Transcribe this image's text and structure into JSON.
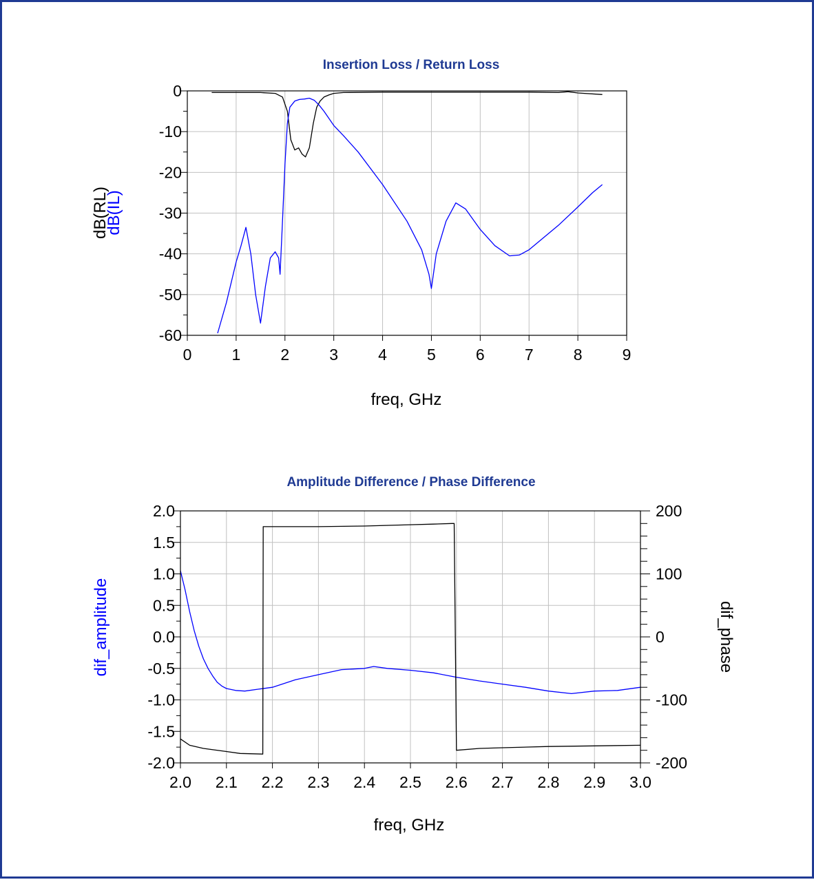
{
  "chart_data": [
    {
      "type": "line",
      "title": "Insertion Loss / Return Loss",
      "xlabel": "freq, GHz",
      "ylabels": [
        "dB(RL)",
        "dB(IL)"
      ],
      "xlim": [
        0,
        9
      ],
      "ylim": [
        -60,
        0
      ],
      "xticks": [
        "0",
        "1",
        "2",
        "3",
        "4",
        "5",
        "6",
        "7",
        "8",
        "9"
      ],
      "yticks": [
        "0",
        "-10",
        "-20",
        "-30",
        "-40",
        "-50",
        "-60"
      ],
      "grid": true,
      "series": [
        {
          "name": "dB(RL)",
          "color": "#000000",
          "x": [
            0.5,
            1.0,
            1.5,
            1.8,
            1.95,
            2.05,
            2.12,
            2.2,
            2.28,
            2.35,
            2.42,
            2.5,
            2.58,
            2.65,
            2.72,
            2.8,
            2.9,
            3.0,
            3.2,
            4.0,
            5.0,
            6.0,
            7.0,
            7.6,
            7.8,
            8.0,
            8.5
          ],
          "y": [
            -0.4,
            -0.4,
            -0.4,
            -0.6,
            -1.5,
            -5,
            -12,
            -14.5,
            -14,
            -15.5,
            -16.2,
            -14,
            -8,
            -4,
            -2.5,
            -1.5,
            -1.0,
            -0.6,
            -0.4,
            -0.3,
            -0.3,
            -0.3,
            -0.3,
            -0.4,
            -0.2,
            -0.5,
            -0.9
          ]
        },
        {
          "name": "dB(IL)",
          "color": "#0000ff",
          "x": [
            0.62,
            0.8,
            1.0,
            1.1,
            1.2,
            1.3,
            1.4,
            1.5,
            1.6,
            1.7,
            1.8,
            1.87,
            1.9,
            1.95,
            2.0,
            2.05,
            2.1,
            2.2,
            2.3,
            2.4,
            2.5,
            2.6,
            2.7,
            2.8,
            3.0,
            3.2,
            3.5,
            4.0,
            4.5,
            4.8,
            4.95,
            5.0,
            5.1,
            5.3,
            5.5,
            5.7,
            6.0,
            6.3,
            6.6,
            6.8,
            7.0,
            7.3,
            7.6,
            8.0,
            8.3,
            8.5
          ],
          "y": [
            -59.5,
            -52,
            -42,
            -38,
            -33.5,
            -40,
            -50,
            -57,
            -48,
            -41,
            -39.5,
            -41,
            -45,
            -32,
            -18,
            -8,
            -4,
            -2.5,
            -2.1,
            -2.0,
            -1.8,
            -2.3,
            -3.5,
            -5,
            -8.5,
            -11,
            -15,
            -23,
            -32,
            -39,
            -45,
            -48.5,
            -40,
            -32,
            -27.5,
            -29,
            -34,
            -38,
            -40.5,
            -40.3,
            -39,
            -36,
            -33,
            -28.5,
            -25,
            -23
          ]
        }
      ]
    },
    {
      "type": "line",
      "title": "Amplitude Difference / Phase Difference",
      "xlabel": "freq, GHz",
      "ylabel": "dif_amplitude",
      "y2label": "dif_phase",
      "xlim": [
        2.0,
        3.0
      ],
      "ylim": [
        -2.0,
        2.0
      ],
      "y2lim": [
        -200,
        200
      ],
      "xticks": [
        "2.0",
        "2.1",
        "2.2",
        "2.3",
        "2.4",
        "2.5",
        "2.6",
        "2.7",
        "2.8",
        "2.9",
        "3.0"
      ],
      "yticks": [
        "2.0",
        "1.5",
        "1.0",
        "0.5",
        "0.0",
        "-0.5",
        "-1.0",
        "-1.5",
        "-2.0"
      ],
      "y2ticks": [
        "200",
        "100",
        "0",
        "-100",
        "-200"
      ],
      "grid": true,
      "series": [
        {
          "name": "dif_amplitude",
          "axis": "left",
          "color": "#0000ff",
          "x": [
            2.0,
            2.01,
            2.02,
            2.03,
            2.04,
            2.05,
            2.06,
            2.07,
            2.08,
            2.09,
            2.1,
            2.12,
            2.14,
            2.17,
            2.2,
            2.25,
            2.3,
            2.35,
            2.4,
            2.42,
            2.45,
            2.5,
            2.55,
            2.6,
            2.65,
            2.7,
            2.75,
            2.8,
            2.85,
            2.9,
            2.95,
            3.0
          ],
          "y": [
            1.05,
            0.75,
            0.4,
            0.1,
            -0.15,
            -0.35,
            -0.5,
            -0.62,
            -0.72,
            -0.78,
            -0.82,
            -0.85,
            -0.86,
            -0.83,
            -0.8,
            -0.68,
            -0.6,
            -0.52,
            -0.5,
            -0.47,
            -0.5,
            -0.53,
            -0.57,
            -0.64,
            -0.7,
            -0.75,
            -0.8,
            -0.86,
            -0.9,
            -0.86,
            -0.85,
            -0.8
          ]
        },
        {
          "name": "dif_phase",
          "axis": "right",
          "color": "#000000",
          "x": [
            2.0,
            2.02,
            2.05,
            2.1,
            2.13,
            2.179,
            2.18,
            2.19,
            2.25,
            2.3,
            2.4,
            2.5,
            2.55,
            2.59,
            2.595,
            2.6,
            2.65,
            2.7,
            2.8,
            2.9,
            3.0
          ],
          "y": [
            -162,
            -172,
            -177,
            -182,
            -185,
            -186,
            175,
            175,
            175,
            175,
            176,
            178,
            179,
            180,
            180,
            -180,
            -177,
            -176,
            -174,
            -173,
            -172
          ]
        }
      ]
    }
  ]
}
